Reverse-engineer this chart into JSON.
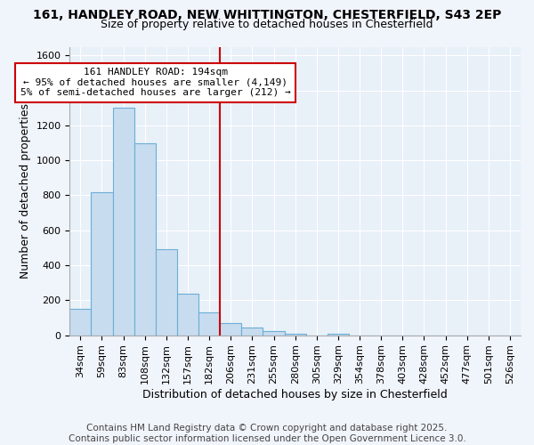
{
  "title_line1": "161, HANDLEY ROAD, NEW WHITTINGTON, CHESTERFIELD, S43 2EP",
  "title_line2": "Size of property relative to detached houses in Chesterfield",
  "xlabel": "Distribution of detached houses by size in Chesterfield",
  "ylabel": "Number of detached properties",
  "categories": [
    "34sqm",
    "59sqm",
    "83sqm",
    "108sqm",
    "132sqm",
    "157sqm",
    "182sqm",
    "206sqm",
    "231sqm",
    "255sqm",
    "280sqm",
    "305sqm",
    "329sqm",
    "354sqm",
    "378sqm",
    "403sqm",
    "428sqm",
    "452sqm",
    "477sqm",
    "501sqm",
    "526sqm"
  ],
  "values": [
    150,
    820,
    1300,
    1100,
    490,
    235,
    130,
    70,
    45,
    25,
    10,
    0,
    10,
    0,
    0,
    0,
    0,
    0,
    0,
    0,
    0
  ],
  "bar_color": "#c8dcf0",
  "bar_edge_color": "#6baed6",
  "annotation_box_text_line1": "161 HANDLEY ROAD: 194sqm",
  "annotation_box_text_line2": "← 95% of detached houses are smaller (4,149)",
  "annotation_box_text_line3": "5% of semi-detached houses are larger (212) →",
  "annotation_box_color": "#ffffff",
  "annotation_box_edge_color": "#cc0000",
  "vertical_line_color": "#cc0000",
  "ylim": [
    0,
    1650
  ],
  "yticks": [
    0,
    200,
    400,
    600,
    800,
    1000,
    1200,
    1400,
    1600
  ],
  "footer_line1": "Contains HM Land Registry data © Crown copyright and database right 2025.",
  "footer_line2": "Contains public sector information licensed under the Open Government Licence 3.0.",
  "background_color": "#f0f4fb",
  "plot_bg_color": "#e8f0f8",
  "grid_color": "#ffffff",
  "title_fontsize": 10,
  "subtitle_fontsize": 9,
  "axis_label_fontsize": 9,
  "tick_fontsize": 8,
  "annotation_fontsize": 8,
  "footer_fontsize": 7.5,
  "vline_x_index": 7.0
}
